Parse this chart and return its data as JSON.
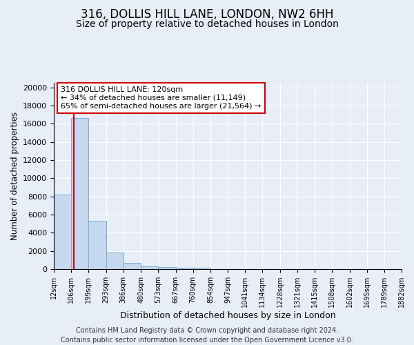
{
  "title": "316, DOLLIS HILL LANE, LONDON, NW2 6HH",
  "subtitle": "Size of property relative to detached houses in London",
  "xlabel": "Distribution of detached houses by size in London",
  "ylabel": "Number of detached properties",
  "footer_line1": "Contains HM Land Registry data © Crown copyright and database right 2024.",
  "footer_line2": "Contains public sector information licensed under the Open Government Licence v3.0.",
  "bar_edges": [
    12,
    106,
    199,
    293,
    386,
    480,
    573,
    667,
    760,
    854,
    947,
    1041,
    1134,
    1228,
    1321,
    1415,
    1508,
    1602,
    1695,
    1789,
    1882
  ],
  "bar_heights": [
    8200,
    16600,
    5300,
    1850,
    720,
    340,
    210,
    185,
    130,
    0,
    0,
    0,
    0,
    0,
    0,
    0,
    0,
    0,
    0,
    0
  ],
  "bar_color": "#c5d8f0",
  "bar_edge_color": "#7aadd4",
  "vline_x": 120,
  "vline_color": "#cc0000",
  "annotation_title": "316 DOLLIS HILL LANE: 120sqm",
  "annotation_line2": "← 34% of detached houses are smaller (11,149)",
  "annotation_line3": "65% of semi-detached houses are larger (21,564) →",
  "annotation_box_color": "#cc0000",
  "ylim": [
    0,
    20500
  ],
  "yticks": [
    0,
    2000,
    4000,
    6000,
    8000,
    10000,
    12000,
    14000,
    16000,
    18000,
    20000
  ],
  "tick_labels": [
    "12sqm",
    "106sqm",
    "199sqm",
    "293sqm",
    "386sqm",
    "480sqm",
    "573sqm",
    "667sqm",
    "760sqm",
    "854sqm",
    "947sqm",
    "1041sqm",
    "1134sqm",
    "1228sqm",
    "1321sqm",
    "1415sqm",
    "1508sqm",
    "1602sqm",
    "1695sqm",
    "1789sqm",
    "1882sqm"
  ],
  "background_color": "#e8eef8",
  "grid_color": "#ffffff",
  "title_fontsize": 12,
  "subtitle_fontsize": 10,
  "footer_fontsize": 7
}
